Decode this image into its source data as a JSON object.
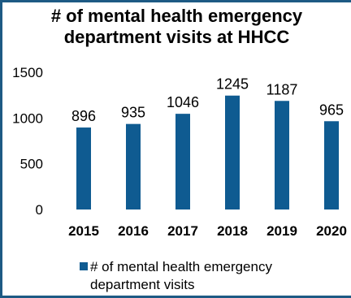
{
  "chart_data": {
    "type": "bar",
    "title_lines": [
      "# of mental health emergency",
      "department visits at HHCC"
    ],
    "categories": [
      "2015",
      "2016",
      "2017",
      "2018",
      "2019",
      "2020"
    ],
    "series": [
      {
        "name": "# of mental health emergency department visits",
        "values": [
          896,
          935,
          1046,
          1245,
          1187,
          965
        ],
        "color": "#0f5b91"
      }
    ],
    "data_labels": [
      "896",
      "935",
      "1046",
      "1245",
      "1187",
      "965"
    ],
    "y_ticks": [
      "0",
      "500",
      "1000",
      "1500"
    ],
    "y_tick_values": [
      0,
      500,
      1000,
      1500
    ],
    "ylim": [
      0,
      1500
    ],
    "grid": false,
    "legend_position": "bottom"
  },
  "legend": {
    "label_line1": "# of mental health emergency",
    "label_line2": "department visits"
  },
  "colors": {
    "frame": "#1d5a84",
    "bar": "#0f5b91"
  }
}
